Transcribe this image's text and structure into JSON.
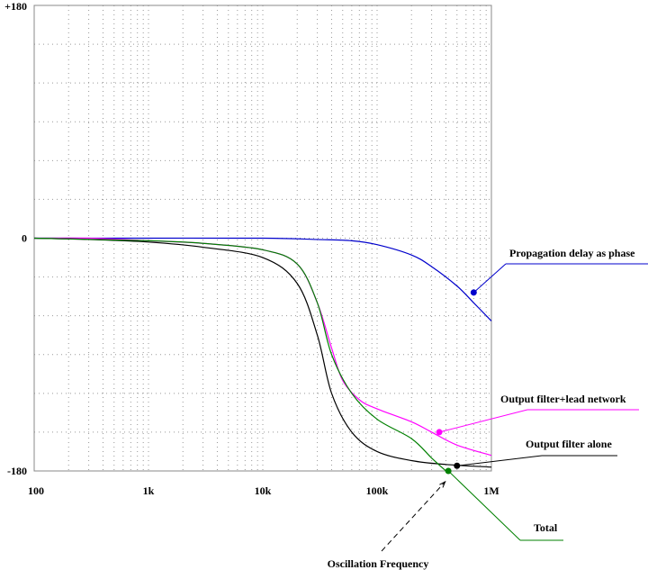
{
  "chart_data": {
    "type": "line",
    "x_scale": "log",
    "xlim": [
      100,
      1000000
    ],
    "ylim": [
      -180,
      180
    ],
    "grid": true,
    "x_ticks": [
      {
        "value": 100,
        "label": "100"
      },
      {
        "value": 1000,
        "label": "1k"
      },
      {
        "value": 10000,
        "label": "10k"
      },
      {
        "value": 100000,
        "label": "100k"
      },
      {
        "value": 1000000,
        "label": "1M"
      }
    ],
    "y_ticks": [
      {
        "value": 180,
        "label": "+180"
      },
      {
        "value": 0,
        "label": "0"
      },
      {
        "value": -180,
        "label": "-180"
      }
    ],
    "series": [
      {
        "name": "Propagation delay as phase",
        "color": "#0000cc",
        "points": [
          [
            100,
            0
          ],
          [
            1000,
            0
          ],
          [
            10000,
            0
          ],
          [
            30000,
            -1
          ],
          [
            60000,
            -2
          ],
          [
            100000,
            -5
          ],
          [
            200000,
            -13
          ],
          [
            300000,
            -22
          ],
          [
            500000,
            -37
          ],
          [
            700000,
            -50
          ],
          [
            1000000,
            -64
          ]
        ]
      },
      {
        "name": "Output filter+lead network",
        "color": "#ff00ff",
        "points": [
          [
            100,
            0
          ],
          [
            300,
            0
          ],
          [
            1000,
            -2
          ],
          [
            3000,
            -4
          ],
          [
            10000,
            -9
          ],
          [
            20000,
            -20
          ],
          [
            30000,
            -50
          ],
          [
            40000,
            -85
          ],
          [
            50000,
            -110
          ],
          [
            70000,
            -125
          ],
          [
            100000,
            -132
          ],
          [
            200000,
            -142
          ],
          [
            300000,
            -150
          ],
          [
            500000,
            -160
          ],
          [
            1000000,
            -168
          ]
        ]
      },
      {
        "name": "Output filter alone",
        "color": "#000000",
        "points": [
          [
            100,
            0
          ],
          [
            300,
            -1
          ],
          [
            1000,
            -3
          ],
          [
            3000,
            -7
          ],
          [
            10000,
            -15
          ],
          [
            20000,
            -35
          ],
          [
            30000,
            -75
          ],
          [
            40000,
            -120
          ],
          [
            60000,
            -150
          ],
          [
            100000,
            -165
          ],
          [
            200000,
            -172
          ],
          [
            400000,
            -175
          ],
          [
            1000000,
            -177
          ]
        ]
      },
      {
        "name": "Total",
        "color": "#008000",
        "points": [
          [
            100,
            0
          ],
          [
            1000,
            -2
          ],
          [
            3000,
            -4
          ],
          [
            10000,
            -9
          ],
          [
            20000,
            -20
          ],
          [
            30000,
            -50
          ],
          [
            40000,
            -90
          ],
          [
            60000,
            -120
          ],
          [
            100000,
            -140
          ],
          [
            200000,
            -155
          ],
          [
            300000,
            -170
          ],
          [
            400000,
            -180
          ]
        ]
      }
    ],
    "annotations": [
      {
        "text": "Propagation delay as phase",
        "series": 0,
        "at": [
          700000,
          -42
        ]
      },
      {
        "text": "Output filter+lead network",
        "series": 1,
        "at": [
          350000,
          -150
        ]
      },
      {
        "text": "Output filter alone",
        "series": 2,
        "at": [
          500000,
          -176
        ]
      },
      {
        "text": "Total",
        "series": 3,
        "at": [
          420000,
          -180
        ]
      },
      {
        "text": "Oscillation Frequency",
        "series": null,
        "at": [
          380000,
          -180
        ]
      }
    ]
  }
}
